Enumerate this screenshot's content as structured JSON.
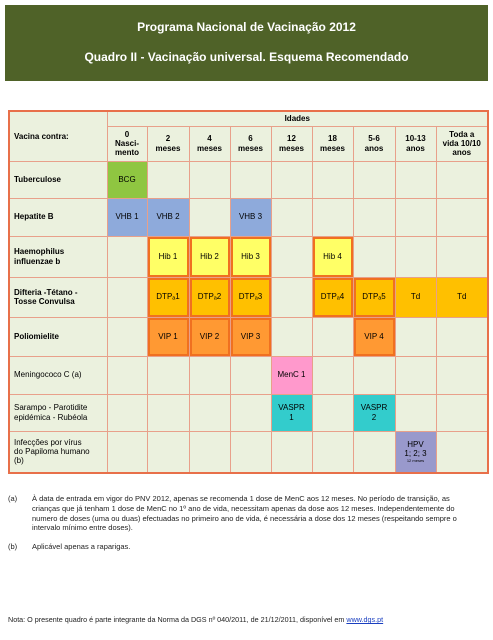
{
  "header": {
    "title": "Programa Nacional de Vacinação 2012",
    "subtitle": "Quadro II - Vacinação universal. Esquema Recomendado"
  },
  "table": {
    "vaccine_header": "Vacina contra:",
    "ages_header": "Idades",
    "ages": [
      "0\nNasci-\nmento",
      "2\nmeses",
      "4\nmeses",
      "6\nmeses",
      "12\nmeses",
      "18\nmeses",
      "5-6\nanos",
      "10-13\nanos",
      "Toda a\nvida 10/10\nanos"
    ],
    "rows": [
      {
        "label": "Tuberculose",
        "color": "#8fc641",
        "cells": [
          "BCG",
          null,
          null,
          null,
          null,
          null,
          null,
          null,
          null
        ]
      },
      {
        "label": "Hepatite B",
        "color": "#8eaadb",
        "cells": [
          "VHB 1",
          "VHB 2",
          null,
          "VHB 3",
          null,
          null,
          null,
          null,
          null
        ]
      },
      {
        "label": "Haemophilus\ninfluenzae b",
        "color": "#ffff66",
        "cells": [
          null,
          "Hib 1",
          "Hib 2",
          "Hib 3",
          null,
          "Hib 4",
          null,
          null,
          null
        ]
      },
      {
        "label": "Difteria -Tétano -\nTosse Convulsa",
        "color": "#ffc000",
        "cells": [
          null,
          "DTPₐ1",
          "DTPₐ2",
          "DTPₐ3",
          null,
          "DTPₐ4",
          "DTPₐ5",
          "Td",
          "Td"
        ]
      },
      {
        "label": "Poliomielite",
        "color": "#ff9933",
        "cells": [
          null,
          "VIP 1",
          "VIP 2",
          "VIP 3",
          null,
          null,
          "VIP 4",
          null,
          null
        ]
      },
      {
        "label": "Meningococo C (a)",
        "color": "#ff99cc",
        "cells": [
          null,
          null,
          null,
          null,
          "MenC 1",
          null,
          null,
          null,
          null
        ]
      },
      {
        "label": "Sarampo - Parotidite\nepidémica - Rubéola",
        "color": "#33cccc",
        "cells": [
          null,
          null,
          null,
          null,
          "VASPR\n1",
          null,
          "VASPR\n2",
          null,
          null
        ]
      },
      {
        "label": "Infecções por vírus\ndo Papiloma humano\n(b)",
        "color": "#9999cc",
        "cells": [
          null,
          null,
          null,
          null,
          null,
          null,
          null,
          {
            "text": "HPV\n1; 2; 3",
            "note": "12 meses"
          },
          null
        ]
      }
    ]
  },
  "notes": [
    {
      "marker": "(a)",
      "text": "À data de entrada em vigor do PNV 2012, apenas se recomenda 1 dose de MenC aos 12 meses. No período de transição, as crianças que já tenham 1 dose de MenC no 1º ano de vida, necessitam apenas da dose aos 12 meses. Independentemente do numero de doses (uma ou duas) efectuadas no primeiro ano de vida, é necessária a dose dos 12 meses (respeitando sempre o intervalo mínimo entre doses)."
    },
    {
      "marker": "(b)",
      "text": "Aplicável apenas a raparigas."
    }
  ],
  "footer": {
    "text": "Nota: O presente quadro é parte integrante da Norma da DGS nº 040/2011, de 21/12/2011, disponível em ",
    "link": "www.dgs.pt"
  }
}
